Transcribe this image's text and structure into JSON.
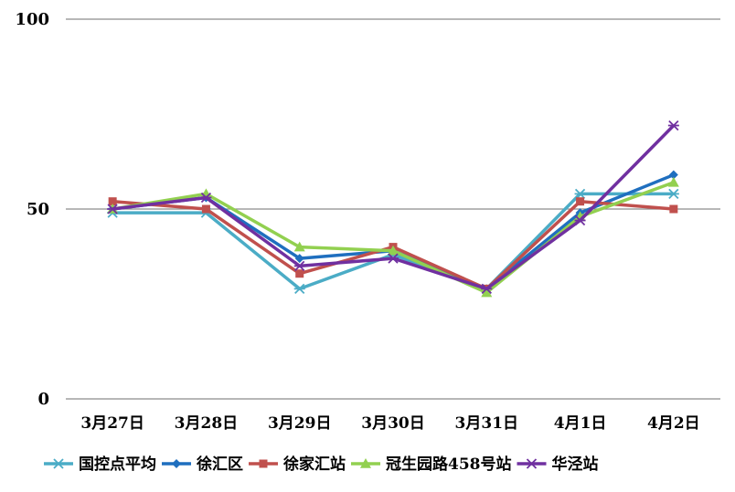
{
  "chart_data": {
    "type": "line",
    "title": "",
    "xlabel": "",
    "ylabel": "",
    "ylim": [
      0,
      100
    ],
    "yticks": [
      0,
      50,
      100
    ],
    "grid": true,
    "legend_position": "bottom",
    "categories": [
      "3月27日",
      "3月28日",
      "3月29日",
      "3月30日",
      "3月31日",
      "4月1日",
      "4月2日"
    ],
    "series": [
      {
        "name": "国控点平均",
        "color": "#4BACC6",
        "marker": "star",
        "values": [
          49,
          49,
          29,
          38,
          29,
          54,
          54
        ]
      },
      {
        "name": "徐汇区",
        "color": "#1F6FBF",
        "marker": "diamond",
        "values": [
          50,
          53,
          37,
          39,
          29,
          49,
          59
        ]
      },
      {
        "name": "徐家汇站",
        "color": "#C0504D",
        "marker": "square",
        "values": [
          52,
          50,
          33,
          40,
          29,
          52,
          50
        ]
      },
      {
        "name": "冠生园路458号站",
        "color": "#92D050",
        "marker": "triangle",
        "values": [
          50,
          54,
          40,
          39,
          28,
          48,
          57
        ]
      },
      {
        "name": "华泾站",
        "color": "#7030A0",
        "marker": "star",
        "values": [
          50,
          53,
          35,
          37,
          29,
          47,
          72
        ]
      }
    ]
  }
}
